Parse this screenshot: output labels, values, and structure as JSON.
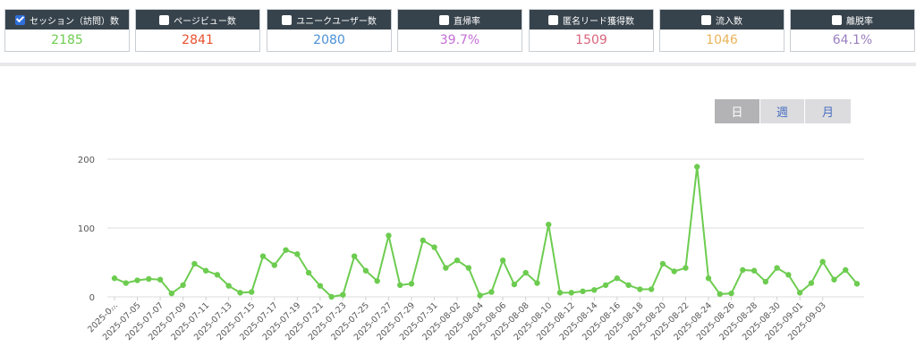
{
  "metrics": [
    {
      "label": "セッション（訪問）数",
      "value": "2185",
      "color": "#6dcc50",
      "checked": true
    },
    {
      "label": "ページビュー数",
      "value": "2841",
      "color": "#e8502e",
      "checked": false
    },
    {
      "label": "ユニークユーザー数",
      "value": "2080",
      "color": "#4a90d6",
      "checked": false
    },
    {
      "label": "直帰率",
      "value": "39.7%",
      "color": "#c56ed6",
      "checked": false
    },
    {
      "label": "匿名リード獲得数",
      "value": "1509",
      "color": "#d8647c",
      "checked": false
    },
    {
      "label": "流入数",
      "value": "1046",
      "color": "#e9b45a",
      "checked": false
    },
    {
      "label": "離脱率",
      "value": "64.1%",
      "color": "#9a7fbf",
      "checked": false
    }
  ],
  "period": {
    "day": "日",
    "week": "週",
    "month": "月",
    "active": "day"
  },
  "chart_data": {
    "type": "line",
    "title": "",
    "xlabel": "",
    "ylabel": "",
    "ylim": [
      0,
      200
    ],
    "yticks": [
      0,
      100,
      200
    ],
    "grid": true,
    "line_color": "#6dcc50",
    "first_label": "...",
    "tick_labels": [
      "2025-0...",
      "2025-07-05",
      "2025-07-07",
      "2025-07-09",
      "2025-07-11",
      "2025-07-13",
      "2025-07-15",
      "2025-07-17",
      "2025-07-19",
      "2025-07-21",
      "2025-07-23",
      "2025-07-25",
      "2025-07-27",
      "2025-07-29",
      "2025-07-31",
      "2025-08-02",
      "2025-08-04",
      "2025-08-06",
      "2025-08-08",
      "2025-08-10",
      "2025-08-12",
      "2025-08-14",
      "2025-08-16",
      "2025-08-18",
      "2025-08-20",
      "2025-08-22",
      "2025-08-24",
      "2025-08-26",
      "2025-08-28",
      "2025-08-30",
      "2025-09-01",
      "2025-09-03"
    ],
    "values": [
      27,
      20,
      24,
      26,
      25,
      5,
      17,
      48,
      38,
      32,
      16,
      6,
      7,
      59,
      46,
      68,
      62,
      35,
      16,
      0,
      3,
      59,
      38,
      23,
      89,
      17,
      19,
      82,
      72,
      42,
      53,
      42,
      2,
      7,
      53,
      18,
      35,
      20,
      105,
      6,
      6,
      8,
      10,
      17,
      27,
      17,
      11,
      11,
      48,
      37,
      42,
      189,
      27,
      4,
      5,
      39,
      38,
      22,
      42,
      32,
      6,
      20,
      51,
      25,
      39,
      19
    ]
  }
}
